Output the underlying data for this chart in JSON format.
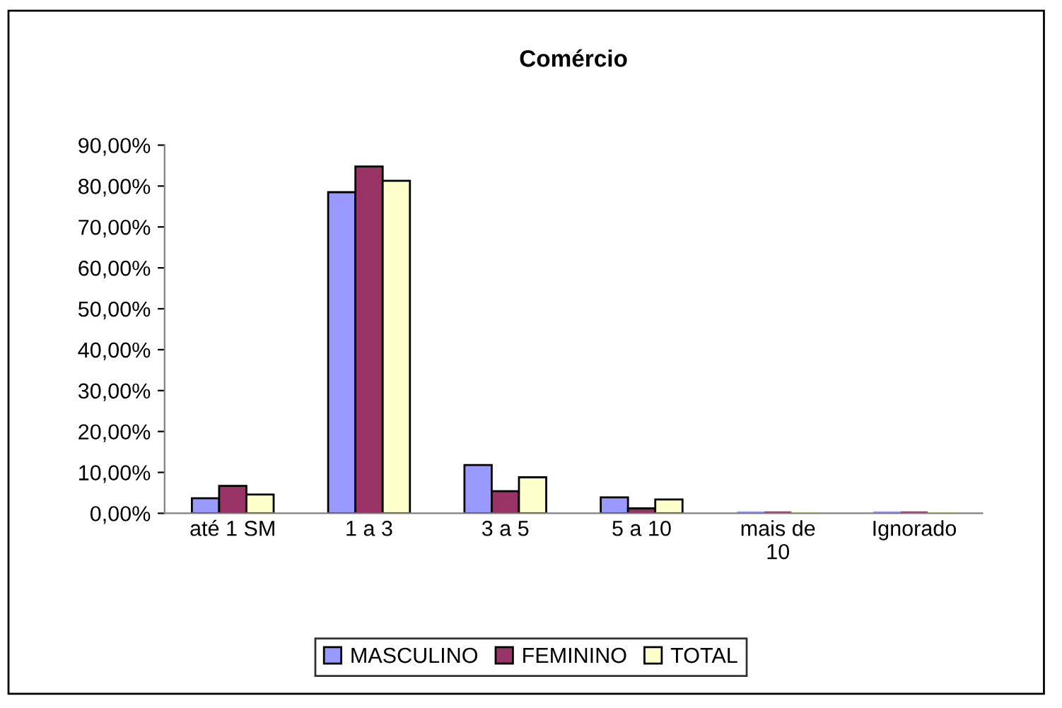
{
  "chart_data": {
    "type": "bar",
    "title": "Comércio",
    "categories": [
      "até 1 SM",
      "1 a 3",
      "3 a 5",
      "5 a 10",
      "mais de 10",
      "Ignorado"
    ],
    "series": [
      {
        "name": "MASCULINO",
        "color": "#9999ff",
        "values": [
          3.7,
          78.5,
          11.8,
          3.9,
          0,
          0
        ]
      },
      {
        "name": "FEMININO",
        "color": "#993366",
        "values": [
          6.7,
          84.8,
          5.4,
          1.2,
          0,
          0
        ]
      },
      {
        "name": "TOTAL",
        "color": "#ffffcc",
        "values": [
          4.6,
          81.3,
          8.8,
          3.4,
          0,
          0
        ]
      }
    ],
    "ylim": [
      0,
      90
    ],
    "yticks": [
      {
        "value": 0,
        "label": "0,00%"
      },
      {
        "value": 10,
        "label": "10,00%"
      },
      {
        "value": 20,
        "label": "20,00%"
      },
      {
        "value": 30,
        "label": "30,00%"
      },
      {
        "value": 40,
        "label": "40,00%"
      },
      {
        "value": 50,
        "label": "50,00%"
      },
      {
        "value": 60,
        "label": "60,00%"
      },
      {
        "value": 70,
        "label": "70,00%"
      },
      {
        "value": 80,
        "label": "80,00%"
      },
      {
        "value": 90,
        "label": "90,00%"
      }
    ],
    "grid": false,
    "legend": "bottom"
  }
}
